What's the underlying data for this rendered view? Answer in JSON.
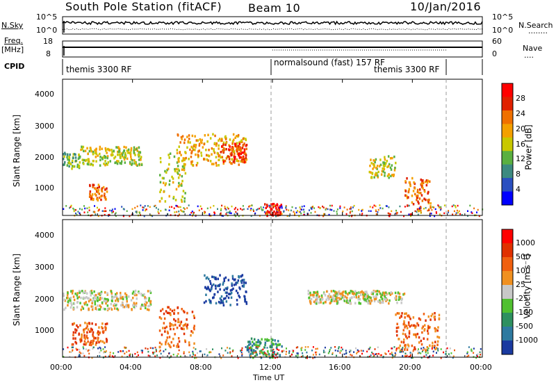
{
  "header": {
    "station_title": "South Pole Station (fitACF)",
    "beam": "Beam 10",
    "date": "10/Jan/2016"
  },
  "top_panels": {
    "nsky_label": "N.Sky",
    "nsky_ticks": [
      "10^5",
      "10^0"
    ],
    "nsearch_label": "N.Search",
    "nsearch_ticks": [
      "10^5",
      "10^0"
    ],
    "freq_label": "Freq.",
    "freq_unit": "[MHz]",
    "freq_ticks": [
      "18",
      "8"
    ],
    "nave_label": "Nave",
    "nave_ticks": [
      "60",
      "0"
    ],
    "cpid_label": "CPID",
    "cpid_segments": [
      {
        "label": "themis 3300 RF",
        "start": 0,
        "end": 12
      },
      {
        "label": "normalsound (fast) 157 RF",
        "start": 12,
        "end": 22
      },
      {
        "label": "themis 3300 RF",
        "start": 22,
        "end": 24
      }
    ]
  },
  "chart_data": [
    {
      "type": "heatmap",
      "title": "",
      "parameter": "Power",
      "ylabel": "Slant Range [km]",
      "ylim": [
        180,
        4500
      ],
      "yticks": [
        "1000",
        "2000",
        "3000",
        "4000"
      ],
      "colorbar_label": "Power [dB]",
      "colorbar_ticks": [
        "4",
        "8",
        "12",
        "16",
        "20",
        "24",
        "28"
      ],
      "colors": [
        "#0000ff",
        "#2a4fc0",
        "#3c8a80",
        "#5ab040",
        "#c8c800",
        "#f4a000",
        "#f07000",
        "#e02000",
        "#ff0000"
      ],
      "echo_regions": [
        {
          "x_hours": [
            0.0,
            1.0
          ],
          "range_km": [
            1700,
            2200
          ],
          "level": 3
        },
        {
          "x_hours": [
            1.0,
            4.5
          ],
          "range_km": [
            1800,
            2400
          ],
          "level": 4
        },
        {
          "x_hours": [
            1.5,
            2.5
          ],
          "range_km": [
            700,
            1200
          ],
          "level": 6
        },
        {
          "x_hours": [
            5.5,
            7.0
          ],
          "range_km": [
            600,
            2200
          ],
          "level": 4
        },
        {
          "x_hours": [
            6.5,
            10.5
          ],
          "range_km": [
            1800,
            2800
          ],
          "level": 5
        },
        {
          "x_hours": [
            9.0,
            10.5
          ],
          "range_km": [
            1900,
            2500
          ],
          "level": 7
        },
        {
          "x_hours": [
            11.5,
            12.5
          ],
          "range_km": [
            200,
            600
          ],
          "level": 8
        },
        {
          "x_hours": [
            17.5,
            19.0
          ],
          "range_km": [
            1400,
            2100
          ],
          "level": 4
        },
        {
          "x_hours": [
            19.5,
            21.0
          ],
          "range_km": [
            400,
            1400
          ],
          "level": 6
        }
      ]
    },
    {
      "type": "heatmap",
      "title": "",
      "parameter": "Velocity",
      "ylabel": "Slant Range [km]",
      "ylim": [
        180,
        4500
      ],
      "yticks": [
        "1000",
        "2000",
        "3000",
        "4000"
      ],
      "colorbar_label": "Velocity [m s⁻¹]",
      "colorbar_ticks": [
        "1000",
        "500",
        "100",
        "25",
        "-25",
        "-100",
        "-500",
        "-1000"
      ],
      "colors": [
        "#1a3aa0",
        "#2e7aa0",
        "#2e9060",
        "#50c030",
        "#c8c8c8",
        "#f09020",
        "#f06010",
        "#e03000",
        "#ff0000"
      ],
      "echo_regions": [
        {
          "x_hours": [
            0.0,
            5.0
          ],
          "range_km": [
            1700,
            2300
          ],
          "level": 4
        },
        {
          "x_hours": [
            0.5,
            2.5
          ],
          "range_km": [
            600,
            1300
          ],
          "level": 6
        },
        {
          "x_hours": [
            5.5,
            7.5
          ],
          "range_km": [
            500,
            1800
          ],
          "level": 6
        },
        {
          "x_hours": [
            8.0,
            10.5
          ],
          "range_km": [
            1800,
            2800
          ],
          "level": 0
        },
        {
          "x_hours": [
            10.5,
            12.5
          ],
          "range_km": [
            200,
            800
          ],
          "level": 2
        },
        {
          "x_hours": [
            14.0,
            19.5
          ],
          "range_km": [
            1900,
            2300
          ],
          "level": 4
        },
        {
          "x_hours": [
            19.0,
            21.5
          ],
          "range_km": [
            400,
            1600
          ],
          "level": 6
        }
      ]
    }
  ],
  "x_axis": {
    "label": "Time UT",
    "ticks": [
      "00:00",
      "04:00",
      "08:00",
      "12:00",
      "16:00",
      "20:00",
      "00:00"
    ],
    "hours": [
      0,
      4,
      8,
      12,
      16,
      20,
      24
    ]
  }
}
